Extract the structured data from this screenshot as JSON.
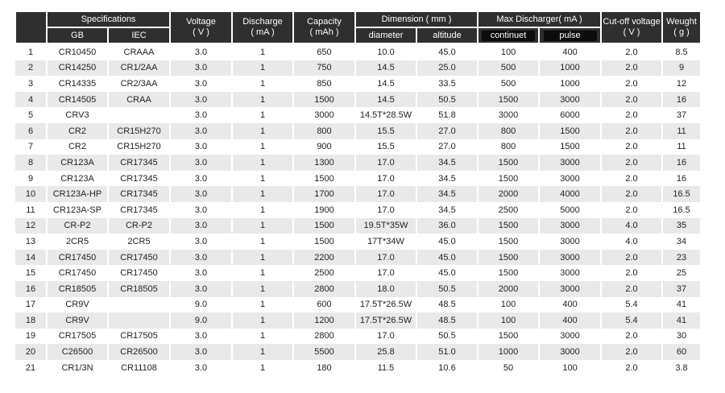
{
  "header": {
    "specifications": "Specifications",
    "gb": "GB",
    "iec": "IEC",
    "voltage": {
      "label": "Voltage",
      "unit": "( V )"
    },
    "discharge": {
      "label": "Discharge",
      "unit": "( mA )"
    },
    "capacity": {
      "label": "Capacity",
      "unit": "( mAh )"
    },
    "dimension": "Dimension ( mm )",
    "diameter": "diameter",
    "altitude": "altitude",
    "max_discharger": "Max Discharger( mA )",
    "continuet": "continuet",
    "pulse": "pulse",
    "cutoff": {
      "label": "Cut-off voltage",
      "unit": "( V )"
    },
    "weight": {
      "label": "Weught",
      "unit": "( g )"
    }
  },
  "table": {
    "rows": [
      [
        "1",
        "CR10450",
        "CRAAA",
        "3.0",
        "1",
        "650",
        "10.0",
        "45.0",
        "100",
        "400",
        "2.0",
        "8.5"
      ],
      [
        "2",
        "CR14250",
        "CR1/2AA",
        "3.0",
        "1",
        "750",
        "14.5",
        "25.0",
        "500",
        "1000",
        "2.0",
        "9"
      ],
      [
        "3",
        "CR14335",
        "CR2/3AA",
        "3.0",
        "1",
        "850",
        "14.5",
        "33.5",
        "500",
        "1000",
        "2.0",
        "12"
      ],
      [
        "4",
        "CR14505",
        "CRAA",
        "3.0",
        "1",
        "1500",
        "14.5",
        "50.5",
        "1500",
        "3000",
        "2.0",
        "16"
      ],
      [
        "5",
        "CRV3",
        null,
        "3.0",
        "1",
        "3000",
        "14.5T*28.5W",
        "51.8",
        "3000",
        "6000",
        "2.0",
        "37"
      ],
      [
        "6",
        "CR2",
        "CR15H270",
        "3.0",
        "1",
        "800",
        "15.5",
        "27.0",
        "800",
        "1500",
        "2.0",
        "11"
      ],
      [
        "7",
        "CR2",
        "CR15H270",
        "3.0",
        "1",
        "900",
        "15.5",
        "27.0",
        "800",
        "1500",
        "2.0",
        "11"
      ],
      [
        "8",
        "CR123A",
        "CR17345",
        "3.0",
        "1",
        "1300",
        "17.0",
        "34.5",
        "1500",
        "3000",
        "2.0",
        "16"
      ],
      [
        "9",
        "CR123A",
        "CR17345",
        "3.0",
        "1",
        "1500",
        "17.0",
        "34.5",
        "1500",
        "3000",
        "2.0",
        "16"
      ],
      [
        "10",
        "CR123A-HP",
        "CR17345",
        "3.0",
        "1",
        "1700",
        "17.0",
        "34.5",
        "2000",
        "4000",
        "2.0",
        "16.5"
      ],
      [
        "11",
        "CR123A-SP",
        "CR17345",
        "3.0",
        "1",
        "1900",
        "17.0",
        "34.5",
        "2500",
        "5000",
        "2.0",
        "16.5"
      ],
      [
        "12",
        "CR-P2",
        "CR-P2",
        "3.0",
        "1",
        "1500",
        "19.5T*35W",
        "36.0",
        "1500",
        "3000",
        "4.0",
        "35"
      ],
      [
        "13",
        "2CR5",
        "2CR5",
        "3.0",
        "1",
        "1500",
        "17T*34W",
        "45.0",
        "1500",
        "3000",
        "4.0",
        "34"
      ],
      [
        "14",
        "CR17450",
        "CR17450",
        "3.0",
        "1",
        "2200",
        "17.0",
        "45.0",
        "1500",
        "3000",
        "2.0",
        "23"
      ],
      [
        "15",
        "CR17450",
        "CR17450",
        "3.0",
        "1",
        "2500",
        "17.0",
        "45.0",
        "1500",
        "3000",
        "2.0",
        "25"
      ],
      [
        "16",
        "CR18505",
        "CR18505",
        "3.0",
        "1",
        "2800",
        "18.0",
        "50.5",
        "2000",
        "3000",
        "2.0",
        "37"
      ],
      [
        "17",
        "CR9V",
        null,
        "9.0",
        "1",
        "600",
        "17.5T*26.5W",
        "48.5",
        "100",
        "400",
        "5.4",
        "41"
      ],
      [
        "18",
        "CR9V",
        null,
        "9.0",
        "1",
        "1200",
        "17.5T*26.5W",
        "48.5",
        "100",
        "400",
        "5.4",
        "41"
      ],
      [
        "19",
        "CR17505",
        "CR17505",
        "3.0",
        "1",
        "2800",
        "17.0",
        "50.5",
        "1500",
        "3000",
        "2.0",
        "30"
      ],
      [
        "20",
        "C26500",
        "CR26500",
        "3.0",
        "1",
        "5500",
        "25.8",
        "51.0",
        "1000",
        "3000",
        "2.0",
        "60"
      ],
      [
        "21",
        "CR1/3N",
        "CR11108",
        "3.0",
        "1",
        "180",
        "11.5",
        "10.6",
        "50",
        "100",
        "2.0",
        "3.8"
      ]
    ]
  }
}
